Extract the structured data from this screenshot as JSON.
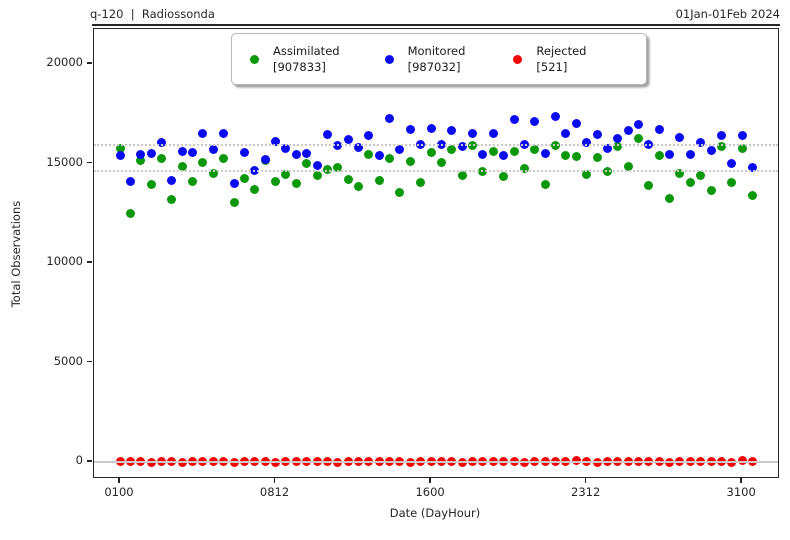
{
  "header": {
    "left": "q-120  |  Radiossonda",
    "right": "01Jan-01Feb 2024"
  },
  "legend": {
    "items": [
      {
        "name": "Assimilated",
        "count": "[907833]",
        "color": "#0b990b"
      },
      {
        "name": "Monitored",
        "count": "[987032]",
        "color": "#0b0bf0"
      },
      {
        "name": "Rejected",
        "count": "[521]",
        "color": "#f40000"
      }
    ]
  },
  "chart_data": {
    "type": "scatter",
    "title": "q-120 | Radiossonda",
    "subtitle": "01Jan-01Feb 2024",
    "xlabel": "Date (DayHour)",
    "ylabel": "Total Observations",
    "ylim": [
      -900,
      21800
    ],
    "yticks": [
      0,
      5000,
      10000,
      15000,
      20000
    ],
    "ytick_labels": [
      "0",
      "5000",
      "10000",
      "15000",
      "20000"
    ],
    "xtick_labels": [
      "0100",
      "0812",
      "1600",
      "2312",
      "3100"
    ],
    "xtick_indices": [
      0,
      15,
      30,
      45,
      60
    ],
    "grid": "off",
    "legend_position": "upper center",
    "mean_lines": [
      {
        "series": "Monitored",
        "value": 15920
      },
      {
        "series": "Assimilated",
        "value": 14642
      }
    ],
    "zero_line": 0,
    "categories": [
      "0100",
      "0112",
      "0200",
      "0212",
      "0300",
      "0312",
      "0400",
      "0412",
      "0500",
      "0512",
      "0600",
      "0612",
      "0700",
      "0712",
      "0800",
      "0812",
      "0900",
      "0912",
      "1000",
      "1012",
      "1100",
      "1112",
      "1200",
      "1212",
      "1300",
      "1312",
      "1400",
      "1412",
      "1500",
      "1512",
      "1600",
      "1612",
      "1700",
      "1712",
      "1800",
      "1812",
      "1900",
      "1912",
      "2000",
      "2012",
      "2100",
      "2112",
      "2200",
      "2212",
      "2300",
      "2312",
      "2400",
      "2412",
      "2500",
      "2512",
      "2600",
      "2612",
      "2700",
      "2712",
      "2800",
      "2812",
      "2900",
      "2912",
      "3000",
      "3012",
      "3100",
      "3112"
    ],
    "series": [
      {
        "name": "Assimilated",
        "total": 907833,
        "color": "#0b990b",
        "values": [
          15750,
          12500,
          15150,
          13950,
          15250,
          13200,
          14870,
          14100,
          15050,
          14490,
          15250,
          13060,
          14250,
          13700,
          15150,
          14100,
          14470,
          14000,
          15000,
          14400,
          14720,
          14790,
          14200,
          13850,
          15450,
          14160,
          15250,
          13560,
          15080,
          14040,
          15550,
          15040,
          15680,
          14400,
          15900,
          14620,
          15580,
          14370,
          15620,
          14740,
          15700,
          13950,
          15910,
          15400,
          15350,
          14450,
          15290,
          14620,
          15850,
          14860,
          16250,
          13900,
          15400,
          13240,
          14500,
          14060,
          14400,
          13660,
          15850,
          14060,
          15750,
          13400
        ]
      },
      {
        "name": "Monitored",
        "total": 987032,
        "color": "#0b0bf0",
        "values": [
          15400,
          14100,
          15430,
          15500,
          16050,
          14150,
          15600,
          15550,
          16500,
          15700,
          16520,
          14000,
          15550,
          14660,
          15200,
          16100,
          15750,
          15450,
          15500,
          14900,
          16450,
          15880,
          16200,
          15800,
          16400,
          15400,
          17250,
          15700,
          16700,
          15950,
          16750,
          15950,
          16650,
          15850,
          16520,
          15450,
          16500,
          15400,
          17220,
          15950,
          17130,
          15500,
          17350,
          16500,
          17020,
          16080,
          16450,
          15750,
          16250,
          16650,
          16960,
          15950,
          16690,
          15460,
          16300,
          15460,
          16050,
          15650,
          16400,
          15010,
          16420,
          14790
        ]
      },
      {
        "name": "Rejected",
        "total": 521,
        "color": "#f40000",
        "values": [
          8,
          12,
          3,
          0,
          15,
          6,
          0,
          10,
          4,
          2,
          18,
          0,
          5,
          9,
          1,
          0,
          6,
          14,
          2,
          4,
          10,
          0,
          3,
          6,
          20,
          1,
          5,
          9,
          0,
          13,
          6,
          2,
          11,
          0,
          4,
          30,
          1,
          5,
          8,
          0,
          14,
          5,
          2,
          9,
          60,
          4,
          0,
          13,
          6,
          1,
          10,
          40,
          4,
          0,
          12,
          5,
          2,
          9,
          4,
          0,
          60,
          8
        ]
      }
    ]
  }
}
